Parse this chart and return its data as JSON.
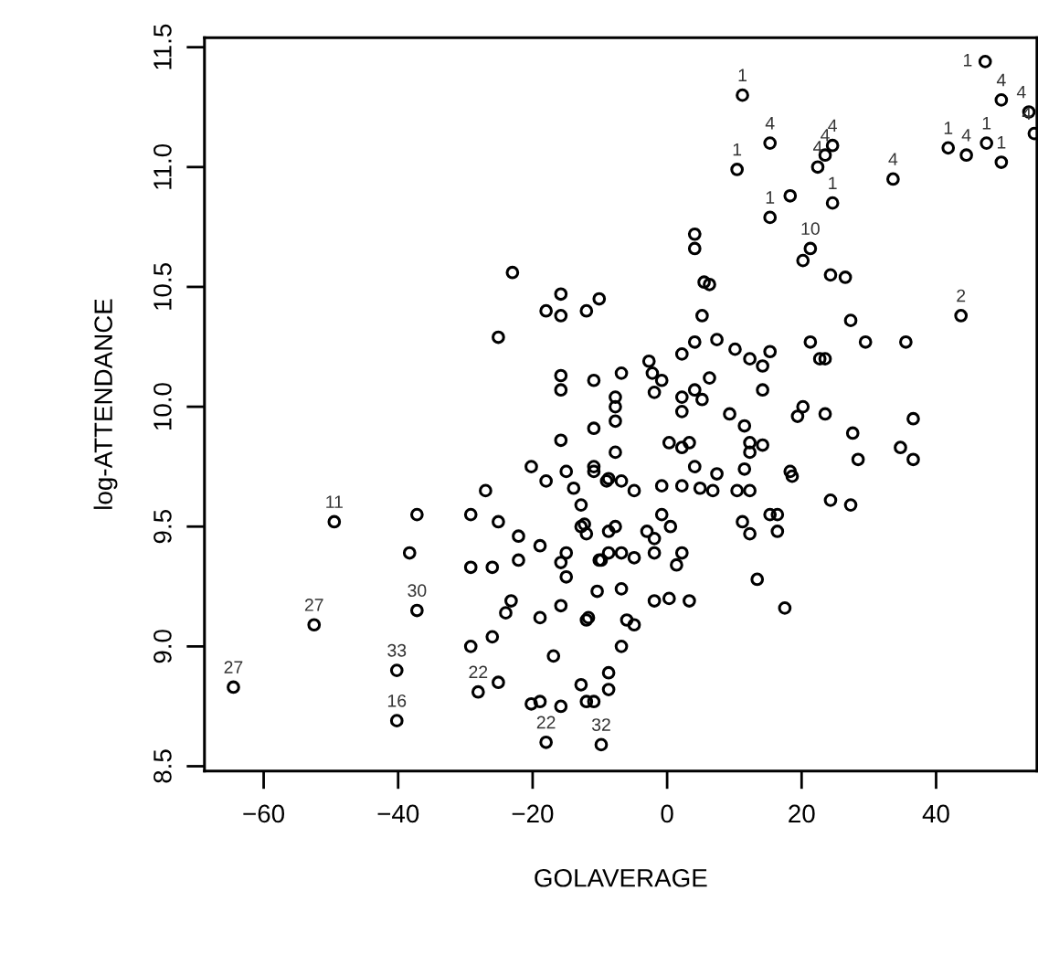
{
  "chart_data": {
    "type": "scatter",
    "xlabel": "GOLAVERAGE",
    "ylabel": "log-ATTENDANCE",
    "xlim": [
      -68.8,
      55
    ],
    "ylim": [
      8.48,
      11.54
    ],
    "xticks": [
      -60,
      -40,
      -20,
      0,
      20,
      40
    ],
    "yticks": [
      {
        "value": 8.5,
        "label": "8.5"
      },
      {
        "value": 9.0,
        "label": "9.0"
      },
      {
        "value": 9.5,
        "label": "9.5"
      },
      {
        "value": 10.0,
        "label": "10.0"
      },
      {
        "value": 10.5,
        "label": "10.5"
      },
      {
        "value": 11.0,
        "label": "11.0"
      },
      {
        "value": 11.5,
        "label": "11.5"
      }
    ],
    "marker": "circle",
    "color": "#000000",
    "x": [
      -23.0,
      -25.1,
      -15.8,
      -18.0,
      -15.8,
      -12.0,
      -10.1,
      -15.8,
      -15.8,
      -10.9,
      -15.8,
      -10.9,
      -20.2,
      -18.0,
      -15.0,
      -13.9,
      -10.9,
      -10.9,
      -27.0,
      -12.8,
      -37.2,
      -29.2,
      -25.1,
      -22.1,
      -18.9,
      -15.0,
      -15.8,
      -15.0,
      -12.0,
      -12.8,
      -38.3,
      -29.2,
      -26.0,
      -22.1,
      -9.8,
      -23.2,
      -24.0,
      -18.9,
      -15.8,
      -12.0,
      -10.4,
      -26.0,
      -29.2,
      -16.9,
      -25.1,
      -20.2,
      -18.9,
      -15.8,
      -12.8,
      -12.0,
      -10.9,
      -9.0,
      -6.8,
      -4.9,
      -0.8,
      2.2,
      4.9,
      6.8,
      10.4,
      12.3,
      18.6,
      24.3,
      27.3,
      -12.3,
      -8.7,
      -7.7,
      -3.0,
      -1.9,
      -0.8,
      0.5,
      11.2,
      12.3,
      15.3,
      16.4,
      16.4,
      -10.1,
      -8.7,
      -6.8,
      -4.9,
      -1.9,
      1.4,
      2.2,
      13.4,
      -11.7,
      -6.8,
      -6.0,
      -4.9,
      -1.9,
      0.3,
      3.3,
      17.5,
      -6.8,
      -8.7,
      -8.7,
      4.1,
      4.1,
      5.5,
      6.3,
      5.2,
      4.1,
      7.4,
      2.2,
      10.1,
      12.3,
      14.2,
      15.3,
      14.2,
      21.3,
      22.7,
      23.5,
      27.3,
      29.5,
      35.5,
      24.3,
      26.5,
      -6.8,
      -2.7,
      -2.2,
      -0.8,
      -1.9,
      -7.7,
      -7.7,
      -7.7,
      2.2,
      2.2,
      4.1,
      5.2,
      6.3,
      9.3,
      11.5,
      12.3,
      12.3,
      14.2,
      0.3,
      2.2,
      3.3,
      -7.7,
      4.1,
      7.4,
      11.5,
      20.2,
      19.4,
      23.5,
      27.6,
      28.4,
      34.7,
      36.6,
      36.6,
      18.3,
      -8.7,
      18.3,
      20.2,
      -64.5,
      -49.5,
      -52.5,
      -37.2,
      -40.2,
      -40.2,
      -28.1,
      -18.0,
      -9.8,
      11.2,
      10.4,
      15.3,
      22.4,
      23.5,
      24.6,
      24.6,
      15.3,
      21.3,
      33.6,
      43.7,
      47.3,
      49.7,
      53.8,
      47.5,
      41.8,
      44.5,
      49.7,
      54.6
    ],
    "values": [
      10.56,
      10.29,
      10.47,
      10.4,
      10.38,
      10.4,
      10.45,
      10.13,
      10.07,
      10.11,
      9.86,
      9.91,
      9.75,
      9.69,
      9.73,
      9.66,
      9.75,
      9.73,
      9.65,
      9.59,
      9.55,
      9.55,
      9.52,
      9.46,
      9.42,
      9.39,
      9.35,
      9.29,
      9.47,
      9.5,
      9.39,
      9.33,
      9.33,
      9.36,
      9.36,
      9.19,
      9.14,
      9.12,
      9.17,
      9.11,
      9.23,
      9.04,
      9.0,
      8.96,
      8.85,
      8.76,
      8.77,
      8.75,
      8.84,
      8.77,
      8.77,
      9.69,
      9.69,
      9.65,
      9.67,
      9.67,
      9.66,
      9.65,
      9.65,
      9.65,
      9.71,
      9.61,
      9.59,
      9.51,
      9.48,
      9.5,
      9.48,
      9.45,
      9.55,
      9.5,
      9.52,
      9.47,
      9.55,
      9.55,
      9.48,
      9.36,
      9.39,
      9.39,
      9.37,
      9.39,
      9.34,
      9.39,
      9.28,
      9.12,
      9.24,
      9.11,
      9.09,
      9.19,
      9.2,
      9.19,
      9.16,
      9.0,
      8.89,
      8.82,
      10.72,
      10.66,
      10.52,
      10.51,
      10.38,
      10.27,
      10.28,
      10.22,
      10.24,
      10.2,
      10.17,
      10.23,
      10.07,
      10.27,
      10.2,
      10.2,
      10.36,
      10.27,
      10.27,
      10.55,
      10.54,
      10.14,
      10.19,
      10.14,
      10.11,
      10.06,
      10.04,
      10.0,
      9.94,
      10.04,
      9.98,
      10.07,
      10.03,
      10.12,
      9.97,
      9.92,
      9.85,
      9.81,
      9.84,
      9.85,
      9.83,
      9.85,
      9.81,
      9.75,
      9.72,
      9.74,
      10.0,
      9.96,
      9.97,
      9.89,
      9.78,
      9.83,
      9.78,
      9.95,
      9.73,
      9.7,
      10.88,
      10.61,
      8.83,
      9.52,
      9.09,
      9.15,
      8.9,
      8.69,
      8.81,
      8.6,
      8.59,
      11.3,
      10.99,
      11.1,
      11.0,
      11.05,
      11.09,
      10.85,
      10.79,
      10.66,
      10.95,
      10.38,
      11.44,
      11.28,
      11.23,
      11.1,
      11.08,
      11.05,
      11.02,
      11.14
    ],
    "annotations": [
      {
        "text": "27",
        "x": -64.5,
        "y": 8.83
      },
      {
        "text": "11",
        "x": -49.5,
        "y": 9.52
      },
      {
        "text": "27",
        "x": -52.5,
        "y": 9.09
      },
      {
        "text": "30",
        "x": -37.2,
        "y": 9.15
      },
      {
        "text": "33",
        "x": -40.2,
        "y": 8.9
      },
      {
        "text": "16",
        "x": -40.2,
        "y": 8.69
      },
      {
        "text": "22",
        "x": -28.1,
        "y": 8.81
      },
      {
        "text": "22",
        "x": -18.0,
        "y": 8.6
      },
      {
        "text": "32",
        "x": -9.8,
        "y": 8.59
      },
      {
        "text": "1",
        "x": 11.2,
        "y": 11.3
      },
      {
        "text": "1",
        "x": 10.4,
        "y": 10.99
      },
      {
        "text": "4",
        "x": 15.3,
        "y": 11.1
      },
      {
        "text": "4",
        "x": 22.4,
        "y": 11.0
      },
      {
        "text": "4",
        "x": 23.5,
        "y": 11.05
      },
      {
        "text": "4",
        "x": 24.6,
        "y": 11.09
      },
      {
        "text": "1",
        "x": 24.6,
        "y": 10.85
      },
      {
        "text": "1",
        "x": 15.3,
        "y": 10.79
      },
      {
        "text": "10",
        "x": 21.3,
        "y": 10.66
      },
      {
        "text": "4",
        "x": 33.6,
        "y": 10.95
      },
      {
        "text": "2",
        "x": 43.7,
        "y": 10.38
      },
      {
        "text": "1",
        "x": 47.3,
        "y": 11.44
      },
      {
        "text": "4",
        "x": 49.7,
        "y": 11.28
      },
      {
        "text": "4",
        "x": 53.8,
        "y": 11.23
      },
      {
        "text": "1",
        "x": 47.5,
        "y": 11.1
      },
      {
        "text": "1",
        "x": 41.8,
        "y": 11.08
      },
      {
        "text": "4",
        "x": 44.5,
        "y": 11.05
      },
      {
        "text": "1",
        "x": 49.7,
        "y": 11.02
      },
      {
        "text": "4",
        "x": 54.6,
        "y": 11.14
      }
    ]
  }
}
